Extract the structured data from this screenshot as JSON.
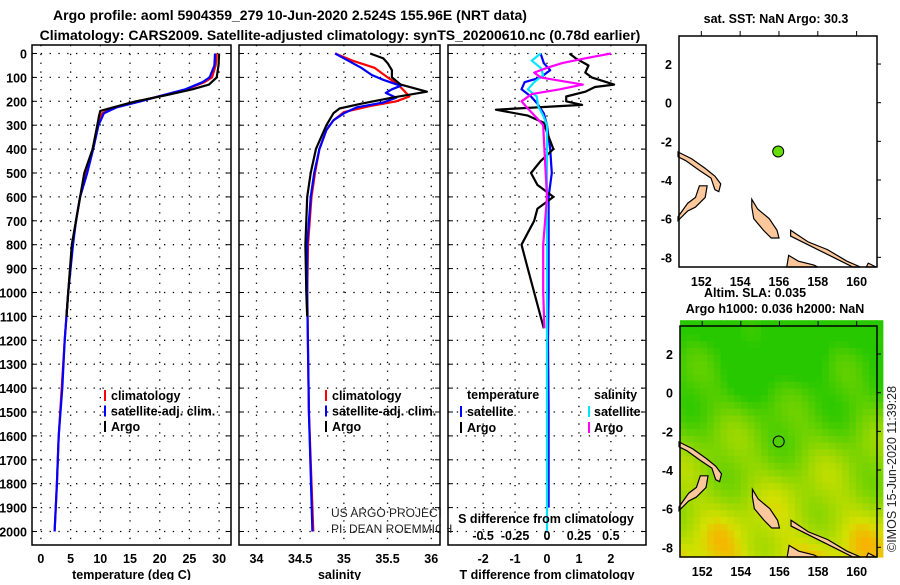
{
  "titles": {
    "line1": "Argo profile: aoml 5904359_279 10-Jun-2020 2.524S 155.96E (NRT data)",
    "line2": "Climatology: CARS2009. Satellite-adjusted climatology: synTS_20200610.nc (0.78d earlier)",
    "map1": "sat. SST: NaN Argo: 30.3",
    "map2a": "Altim. SLA: 0.035",
    "map2b": "Argo h1000: 0.036 h2000: NaN",
    "credit": "©IMOS 15-Jun-2020 11:39:28",
    "project1": "US ARGO PROJECT",
    "project2": "PI: DEAN ROEMMICH"
  },
  "colors": {
    "climatology": "#ff0000",
    "satellite": "#0000ff",
    "argo": "#000000",
    "sat_s": "#00e5ff",
    "argo_s": "#ff00ff",
    "land": "#fcc89b"
  },
  "chart_data": [
    {
      "type": "line",
      "id": "temperature",
      "xlabel": "temperature (deg C)",
      "ylabel": "",
      "xlim": [
        -1.5,
        32
      ],
      "ylim": [
        2060,
        0
      ],
      "xticks": [
        0,
        5,
        10,
        15,
        20,
        25,
        30
      ],
      "yticks": [
        0,
        100,
        200,
        300,
        400,
        500,
        600,
        700,
        800,
        900,
        1000,
        1100,
        1200,
        1300,
        1400,
        1500,
        1600,
        1700,
        1800,
        1900,
        2000
      ],
      "legend": [
        "climatology",
        "satellite-adj. clim.",
        "Argo"
      ],
      "series": [
        {
          "name": "climatology",
          "color": "#ff0000",
          "depth": [
            0,
            50,
            100,
            120,
            150,
            175,
            200,
            225,
            250,
            300,
            400,
            500,
            600,
            700,
            800,
            1000,
            1200,
            1400,
            1600,
            1800,
            2000
          ],
          "values": [
            29.6,
            29.4,
            28.8,
            27.5,
            24.5,
            20.5,
            16.5,
            12.5,
            10.3,
            9.6,
            8.7,
            7.6,
            6.6,
            5.9,
            5.3,
            4.6,
            4.0,
            3.5,
            3.0,
            2.7,
            2.3
          ]
        },
        {
          "name": "satellite-adj. clim.",
          "color": "#0000ff",
          "depth": [
            0,
            50,
            100,
            120,
            150,
            175,
            200,
            225,
            250,
            300,
            400,
            500,
            600,
            700,
            800,
            1000,
            1200,
            1400,
            1500,
            1600,
            1800,
            2000
          ],
          "values": [
            29.3,
            29.2,
            28.4,
            27.2,
            24.3,
            20.5,
            16.8,
            12.8,
            10.6,
            9.7,
            8.8,
            7.8,
            6.6,
            5.9,
            5.4,
            4.6,
            4.0,
            3.6,
            3.3,
            3.0,
            2.7,
            2.3
          ]
        },
        {
          "name": "Argo",
          "color": "#000000",
          "depth": [
            0,
            50,
            100,
            130,
            150,
            175,
            200,
            225,
            240,
            260,
            300,
            400,
            500,
            600,
            700,
            800,
            900,
            1000,
            1100
          ],
          "values": [
            30.0,
            29.9,
            29.6,
            28.3,
            25.5,
            21.0,
            16.0,
            12.2,
            10.0,
            9.8,
            9.5,
            8.7,
            7.3,
            6.6,
            5.9,
            5.2,
            4.9,
            4.6,
            4.3
          ]
        }
      ]
    },
    {
      "type": "line",
      "id": "salinity",
      "xlabel": "salinity",
      "ylabel": "",
      "xlim": [
        33.8,
        36.1
      ],
      "ylim": [
        2060,
        0
      ],
      "xticks": [
        34,
        34.5,
        35,
        35.5,
        36
      ],
      "legend": [
        "climatology",
        "satellite-adj. clim.",
        "Argo"
      ],
      "series": [
        {
          "name": "climatology",
          "color": "#ff0000",
          "depth": [
            0,
            30,
            60,
            100,
            130,
            160,
            180,
            200,
            220,
            245,
            280,
            320,
            400,
            500,
            600,
            800,
            1000,
            1500,
            2000
          ],
          "values": [
            34.9,
            35.1,
            35.35,
            35.5,
            35.62,
            35.7,
            35.75,
            35.6,
            35.3,
            35.0,
            34.88,
            34.8,
            34.72,
            34.67,
            34.63,
            34.59,
            34.58,
            34.6,
            34.65
          ]
        },
        {
          "name": "satellite-adj. clim.",
          "color": "#0000ff",
          "depth": [
            0,
            30,
            60,
            90,
            110,
            135,
            150,
            165,
            185,
            205,
            225,
            250,
            280,
            320,
            400,
            500,
            600,
            800,
            1000,
            1500,
            2000
          ],
          "values": [
            34.9,
            35.05,
            35.2,
            35.32,
            35.45,
            35.65,
            35.55,
            35.48,
            35.6,
            35.45,
            35.15,
            35.0,
            34.88,
            34.8,
            34.72,
            34.66,
            34.62,
            34.58,
            34.58,
            34.6,
            34.64
          ]
        },
        {
          "name": "Argo",
          "color": "#000000",
          "depth": [
            0,
            20,
            40,
            70,
            100,
            130,
            160,
            185,
            210,
            230,
            250,
            300,
            400,
            500,
            600,
            800,
            1000,
            1100
          ],
          "values": [
            35.3,
            35.45,
            35.5,
            35.55,
            35.55,
            35.65,
            35.95,
            35.55,
            35.2,
            34.95,
            34.88,
            34.8,
            34.68,
            34.62,
            34.58,
            34.56,
            34.57,
            34.58
          ]
        }
      ]
    },
    {
      "type": "line",
      "id": "differences",
      "xlabel": "T difference from climatology",
      "x2label": "S difference from climatology",
      "xlim": [
        -3.1,
        3.1
      ],
      "ylim": [
        2060,
        0
      ],
      "xticks": [
        -2,
        -1,
        0,
        1,
        2
      ],
      "x2ticks": [
        "-0.5",
        "-0.25",
        "0",
        "0.25",
        "0.5"
      ],
      "legend_t": {
        "title": "temperature",
        "items": [
          "satellite",
          "Argo"
        ]
      },
      "legend_s": {
        "title": "salinity",
        "items": [
          "satellite",
          "Argo"
        ]
      },
      "series": [
        {
          "name": "T satellite",
          "color": "#0000ff",
          "unit": "T",
          "depth": [
            0,
            40,
            70,
            100,
            120,
            150,
            180,
            210,
            250,
            300,
            400,
            500,
            600,
            700,
            800,
            1000,
            1200,
            1500,
            1800,
            1900
          ],
          "values": [
            -0.2,
            -0.1,
            0.1,
            -0.2,
            -0.7,
            -0.8,
            -0.5,
            -0.3,
            -0.1,
            0.0,
            0.1,
            0.15,
            0.05,
            0.05,
            0.05,
            0.05,
            0.03,
            0.05,
            0.05,
            0.05
          ]
        },
        {
          "name": "T Argo",
          "color": "#000000",
          "unit": "T",
          "depth": [
            0,
            20,
            50,
            80,
            100,
            130,
            140,
            160,
            180,
            200,
            215,
            235,
            260,
            290,
            330,
            400,
            450,
            500,
            550,
            600,
            650,
            700,
            750,
            800,
            900,
            1000,
            1100,
            1150
          ],
          "values": [
            0.7,
            0.9,
            1.3,
            1.2,
            1.4,
            2.1,
            1.5,
            1.2,
            0.6,
            0.6,
            1.1,
            -1.6,
            -0.6,
            -0.1,
            0.0,
            0.2,
            -0.2,
            -0.5,
            -0.3,
            0.2,
            -0.3,
            -0.4,
            -0.6,
            -0.8,
            -0.6,
            -0.4,
            -0.2,
            -0.1
          ]
        },
        {
          "name": "S satellite",
          "color": "#00e5ff",
          "unit": "S",
          "depth": [
            0,
            30,
            60,
            90,
            120,
            150,
            180,
            220,
            260,
            300,
            400,
            1000,
            2000
          ],
          "values": [
            -0.05,
            -0.12,
            -0.05,
            -0.03,
            -0.1,
            -0.15,
            -0.08,
            -0.07,
            -0.03,
            0.0,
            0.0,
            0.0,
            0.0
          ]
        },
        {
          "name": "S Argo",
          "color": "#ff00ff",
          "unit": "S",
          "depth": [
            0,
            20,
            40,
            60,
            80,
            100,
            130,
            150,
            170,
            200,
            230,
            270,
            300,
            400,
            600,
            800,
            1000,
            1150
          ],
          "values": [
            0.5,
            0.3,
            0.12,
            0.0,
            -0.1,
            -0.05,
            0.28,
            0.1,
            -0.12,
            -0.2,
            -0.15,
            -0.08,
            -0.03,
            -0.02,
            0.0,
            -0.03,
            -0.03,
            -0.02
          ]
        }
      ]
    },
    {
      "type": "scatter",
      "id": "map-sst",
      "xlim": [
        150.85,
        161.05
      ],
      "ylim": [
        -8.5,
        3.45
      ],
      "xticks": [
        152,
        154,
        156,
        158,
        160
      ],
      "yticks": [
        2,
        0,
        -2,
        -4,
        -6,
        -8
      ],
      "point": {
        "lon": 155.96,
        "lat": -2.524,
        "color": "#66dd00"
      }
    },
    {
      "type": "heatmap",
      "id": "map-sla",
      "xlim": [
        150.85,
        161.05
      ],
      "ylim": [
        -8.5,
        3.45
      ],
      "xticks": [
        152,
        154,
        156,
        158,
        160
      ],
      "yticks": [
        2,
        0,
        -2,
        -4,
        -6,
        -8
      ],
      "point": {
        "lon": 155.96,
        "lat": -2.524
      }
    }
  ]
}
